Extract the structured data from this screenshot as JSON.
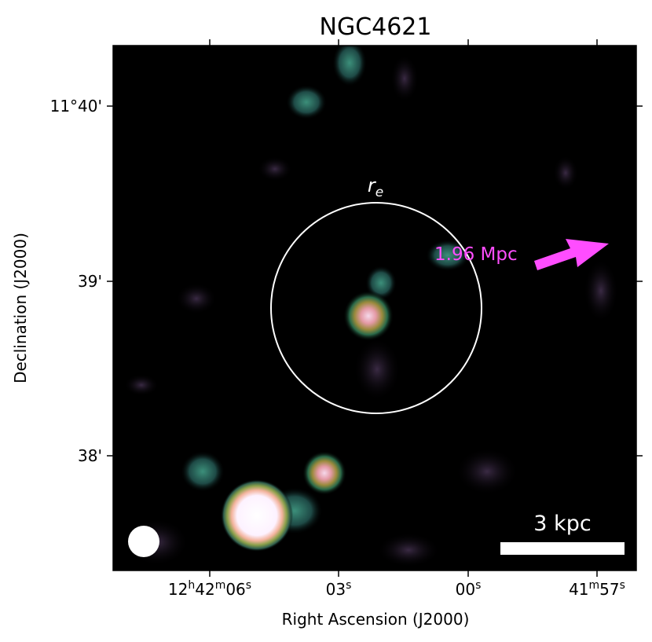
{
  "title": "NGC4621",
  "axes": {
    "xlabel": "Right Ascension (J2000)",
    "ylabel": "Declination (J2000)",
    "x_ticks": [
      {
        "label": "12h42m06s",
        "parts": [
          "12",
          "h",
          "42",
          "m",
          "06",
          "s"
        ]
      },
      {
        "label": "03s",
        "parts": [
          "03",
          "s"
        ]
      },
      {
        "label": "00s",
        "parts": [
          "00",
          "s"
        ]
      },
      {
        "label": "41m57s",
        "parts": [
          "41",
          "m",
          "57",
          "s"
        ]
      }
    ],
    "y_ticks": [
      "11°40'",
      "39'",
      "38'"
    ]
  },
  "annotations": {
    "re_label": "r",
    "re_subscript": "e",
    "distance_label": "1.96 Mpc",
    "scale_bar_label": "3 kpc"
  },
  "colors": {
    "background": "#000000",
    "circle": "#ffffff",
    "arrow": "#ff4dff",
    "scale_bar": "#ffffff",
    "beam": "#ffffff"
  }
}
